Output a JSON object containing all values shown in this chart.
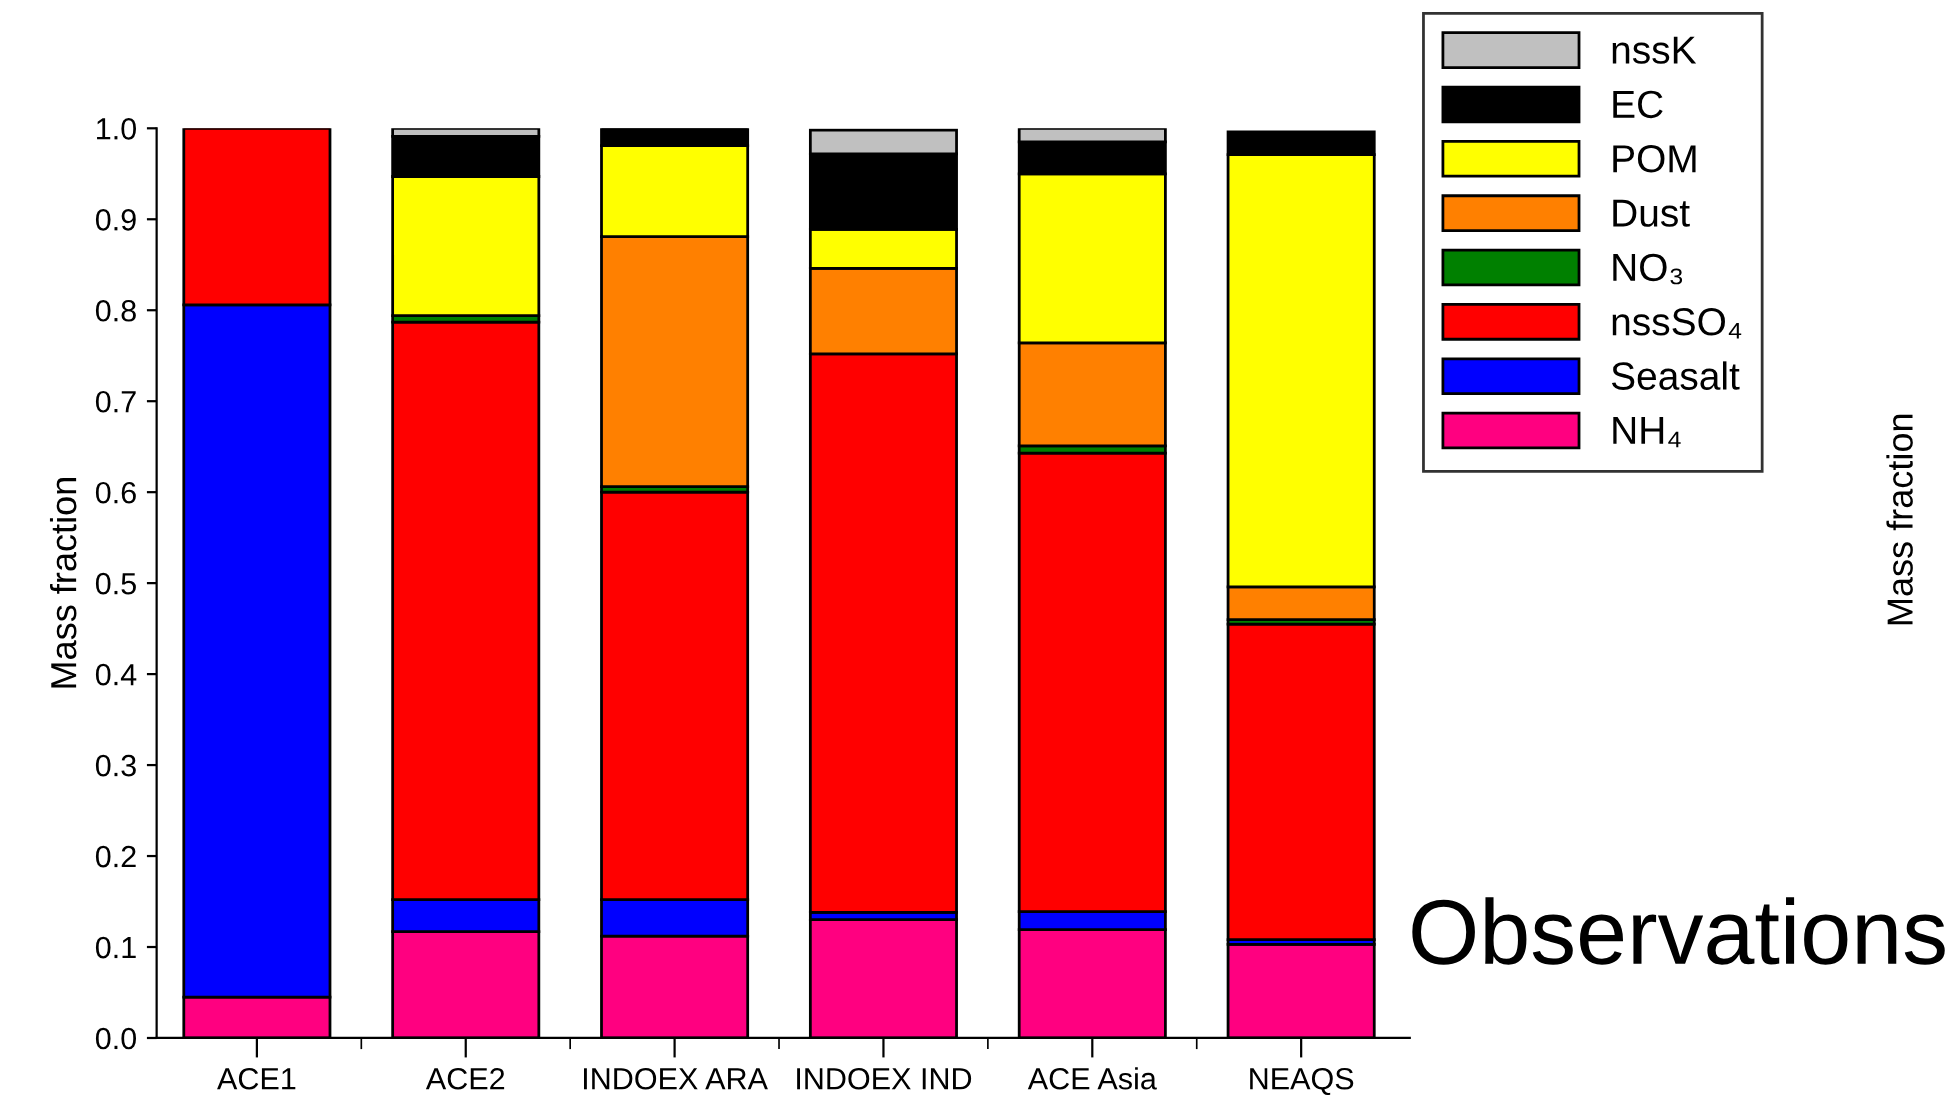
{
  "chart_data": {
    "type": "bar",
    "stacked": true,
    "ylabel": "Mass fraction",
    "categories": [
      "ACE1",
      "ACE2",
      "INDOEX ARA",
      "INDOEX IND",
      "ACE Asia",
      "NEAQS"
    ],
    "series": [
      {
        "name": "NH₄",
        "color": "#ff0080",
        "values": [
          0.045,
          0.117,
          0.112,
          0.13,
          0.119,
          0.103
        ]
      },
      {
        "name": "Seasalt",
        "color": "#0000ff",
        "values": [
          0.761,
          0.035,
          0.04,
          0.008,
          0.02,
          0.005
        ]
      },
      {
        "name": "nssSO₄",
        "color": "#ff0000",
        "values": [
          0.194,
          0.635,
          0.448,
          0.614,
          0.504,
          0.347
        ]
      },
      {
        "name": "NO₃",
        "color": "#008000",
        "values": [
          0,
          0.007,
          0.006,
          null,
          0.008,
          0.005
        ]
      },
      {
        "name": "Dust",
        "color": "#ff8000",
        "values": [
          0,
          0,
          0.275,
          0.094,
          0.113,
          0.036
        ]
      },
      {
        "name": "POM",
        "color": "#ffff00",
        "values": [
          0,
          0.153,
          0.1,
          0.043,
          0.186,
          0.475
        ]
      },
      {
        "name": "EC",
        "color": "#000000",
        "values": [
          0,
          0.044,
          0.019,
          0.083,
          0.035,
          0.025
        ]
      },
      {
        "name": "nssK",
        "color": "#c0c0c0",
        "values": [
          0,
          0.009,
          0,
          0.026,
          0.015,
          null
        ]
      }
    ],
    "ylim": [
      0,
      1
    ],
    "yticks": [
      {
        "value": 0,
        "label": "0.0"
      },
      0.1,
      0.2,
      0.3,
      0.4,
      0.5,
      0.6,
      0.7,
      0.8,
      0.9,
      {
        "value": 1,
        "label": "1.0"
      }
    ],
    "legend": "top right",
    "annotations": [
      "Observations",
      "Mass fraction"
    ]
  }
}
